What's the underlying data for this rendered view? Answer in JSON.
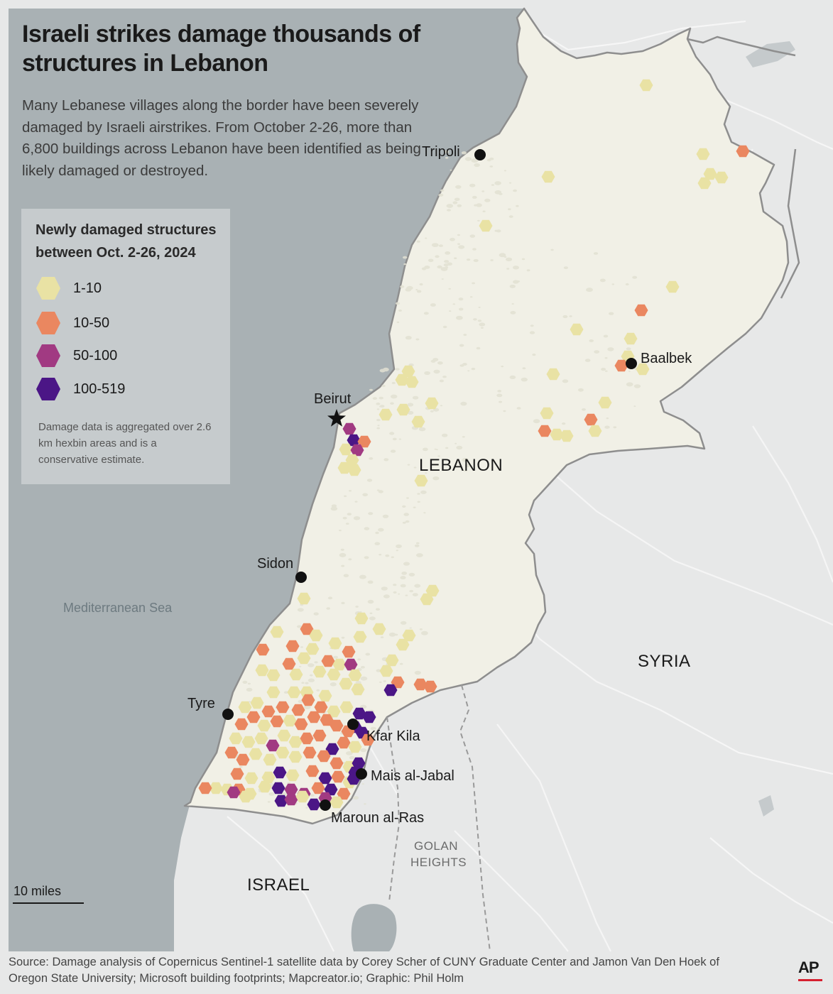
{
  "header": {
    "title": "Israeli strikes damage thousands of structures in Lebanon",
    "subtitle": "Many Lebanese villages along the border have been severely damaged by Israeli airstrikes. From October 2-26, more than 6,800 buildings across Lebanon have been identified as being likely damaged or destroyed."
  },
  "legend": {
    "title": "Newly damaged structures between Oct. 2-26, 2024",
    "items": [
      {
        "label": "1-10",
        "color": "#e9e2a4"
      },
      {
        "label": "10-50",
        "color": "#ea8760"
      },
      {
        "label": "50-100",
        "color": "#a13a82"
      },
      {
        "label": "100-519",
        "color": "#4b1686"
      }
    ],
    "note": "Damage data is aggregated over 2.6 km hexbin areas and is a conservative estimate."
  },
  "places": {
    "tripoli": "Tripoli",
    "baalbek": "Baalbek",
    "beirut": "Beirut",
    "sidon": "Sidon",
    "tyre": "Tyre",
    "kfar_kila": "Kfar Kila",
    "mais_al_jabal": "Mais al-Jabal",
    "maroun_al_ras": "Maroun al-Ras"
  },
  "countries": {
    "lebanon": "LEBANON",
    "syria": "SYRIA",
    "israel": "ISRAEL"
  },
  "regions": {
    "golan_line1": "GOLAN",
    "golan_line2": "HEIGHTS"
  },
  "water": {
    "sea": "Mediterranean Sea"
  },
  "scale": {
    "label": "10 miles"
  },
  "footer": {
    "source": "Source: Damage analysis of Copernicus Sentinel-1 satellite data by Corey Scher of CUNY Graduate Center and Jamon Van Den Hoek of Oregon State University; Microsoft building footprints; Mapcreator.io; Graphic: Phil Holm",
    "logo": "AP"
  },
  "colors": {
    "sea": "#a9b1b4",
    "land_neighbors": "#e7e8e8",
    "lebanon": "#f1f0e6",
    "border": "#8e8e8e"
  }
}
